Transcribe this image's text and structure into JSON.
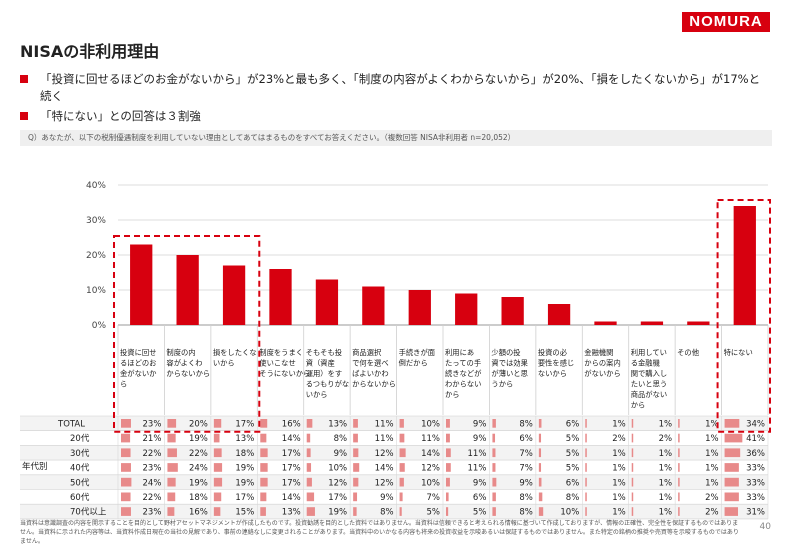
{
  "brand": {
    "logo": "NOMURA",
    "color": "#d7000f"
  },
  "title": "NISAの非利用理由",
  "bullets": [
    "「投資に回せるほどのお金がないから」が23%と最も多く、「制度の内容がよくわからないから」が20%、「損をしたくないから」が17%と続く",
    "「特にない」との回答は３割強"
  ],
  "question": "Q）あなたが、以下の税制優遇制度を利用していない理由としてあてはまるものをすべてお答えください。（複数回答 NISA非利用者 n=20,052）",
  "chart_data": {
    "type": "bar",
    "y_ticks": [
      "40%",
      "30%",
      "20%",
      "10%",
      "0%"
    ],
    "ylim": [
      0,
      40
    ],
    "categories": [
      "投資に回せるほどのお金がないから",
      "制度の内容がよくわからないから",
      "損をしたくないから",
      "制度をうまく使いこなせそうにないから",
      "そもそも投資（資産運用）をするつもりがないから",
      "商品選択で何を選べばよいかわからないから",
      "手続きが面倒だから",
      "利用にあたっての手続きなどがわからないから",
      "少額の投資では効果が薄いと思うから",
      "投資の必要性を感じないから",
      "金融機関からの案内がないから",
      "利用している金融機関で購入したいと思う商品がないから",
      "その他",
      "特にない"
    ],
    "category_lines": [
      [
        "投資に回せ",
        "るほどのお",
        "金がないか",
        "ら"
      ],
      [
        "制度の内",
        "容がよくわ",
        "からないから"
      ],
      [
        "損をしたくな",
        "いから"
      ],
      [
        "制度をうまく",
        "使いこなせ",
        "そうにないから"
      ],
      [
        "そもそも投",
        "資（資産",
        "運用）をす",
        "るつもりがな",
        "いから"
      ],
      [
        "商品選択",
        "で何を選べ",
        "ばよいかわ",
        "からないから"
      ],
      [
        "手続きが面",
        "倒だから"
      ],
      [
        "利用にあ",
        "たっての手",
        "続きなどが",
        "わからない",
        "から"
      ],
      [
        "少額の投",
        "資では効果",
        "が薄いと思",
        "うから"
      ],
      [
        "投資の必",
        "要性を感じ",
        "ないから"
      ],
      [
        "金融機関",
        "からの案内",
        "がないから"
      ],
      [
        "利用してい",
        "る金融機",
        "関で購入し",
        "たいと思う",
        "商品がない",
        "から"
      ],
      [
        "その他"
      ],
      [
        "特にない"
      ]
    ],
    "values": [
      23,
      20,
      17,
      16,
      13,
      11,
      10,
      9,
      8,
      6,
      1,
      1,
      1,
      34
    ],
    "highlight_groups": [
      [
        0,
        2
      ],
      [
        13,
        13
      ]
    ],
    "bar_color": "#d7000f",
    "grid": true
  },
  "table": {
    "age_group_label": "年代別",
    "rows": [
      {
        "label": "TOTAL",
        "values": [
          "23%",
          "20%",
          "17%",
          "16%",
          "13%",
          "11%",
          "10%",
          "9%",
          "8%",
          "6%",
          "1%",
          "1%",
          "1%",
          "34%"
        ],
        "nums": [
          23,
          20,
          17,
          16,
          13,
          11,
          10,
          9,
          8,
          6,
          1,
          1,
          1,
          34
        ]
      },
      {
        "label": "20代",
        "values": [
          "21%",
          "19%",
          "13%",
          "14%",
          "8%",
          "11%",
          "11%",
          "9%",
          "6%",
          "5%",
          "2%",
          "2%",
          "1%",
          "41%"
        ],
        "nums": [
          21,
          19,
          13,
          14,
          8,
          11,
          11,
          9,
          6,
          5,
          2,
          2,
          1,
          41
        ]
      },
      {
        "label": "30代",
        "values": [
          "22%",
          "22%",
          "18%",
          "17%",
          "9%",
          "12%",
          "14%",
          "11%",
          "7%",
          "5%",
          "1%",
          "1%",
          "1%",
          "36%"
        ],
        "nums": [
          22,
          22,
          18,
          17,
          9,
          12,
          14,
          11,
          7,
          5,
          1,
          1,
          1,
          36
        ]
      },
      {
        "label": "40代",
        "values": [
          "23%",
          "24%",
          "19%",
          "17%",
          "10%",
          "14%",
          "12%",
          "11%",
          "7%",
          "5%",
          "1%",
          "1%",
          "1%",
          "33%"
        ],
        "nums": [
          23,
          24,
          19,
          17,
          10,
          14,
          12,
          11,
          7,
          5,
          1,
          1,
          1,
          33
        ]
      },
      {
        "label": "50代",
        "values": [
          "24%",
          "19%",
          "19%",
          "17%",
          "12%",
          "12%",
          "10%",
          "9%",
          "9%",
          "6%",
          "1%",
          "1%",
          "1%",
          "33%"
        ],
        "nums": [
          24,
          19,
          19,
          17,
          12,
          12,
          10,
          9,
          9,
          6,
          1,
          1,
          1,
          33
        ]
      },
      {
        "label": "60代",
        "values": [
          "22%",
          "18%",
          "17%",
          "14%",
          "17%",
          "9%",
          "7%",
          "6%",
          "8%",
          "8%",
          "1%",
          "1%",
          "2%",
          "33%"
        ],
        "nums": [
          22,
          18,
          17,
          14,
          17,
          9,
          7,
          6,
          8,
          8,
          1,
          1,
          2,
          33
        ]
      },
      {
        "label": "70代以上",
        "values": [
          "23%",
          "16%",
          "15%",
          "13%",
          "19%",
          "8%",
          "5%",
          "5%",
          "8%",
          "10%",
          "1%",
          "1%",
          "2%",
          "31%"
        ],
        "nums": [
          23,
          16,
          15,
          13,
          19,
          8,
          5,
          5,
          8,
          10,
          1,
          1,
          2,
          31
        ]
      }
    ]
  },
  "footnote": "当資料は意識調査の内容を開示することを目的として野村アセットマネジメントが作成したものです。投資勧誘を目的とした資料ではありません。当資料は信頼できると考えられる情報に基づいて作成しておりますが、情報の正確性、完全性を保証するものではありません。当資料に示された内容等は、当資料作成日現在の当社の見解であり、事前の連絡なしに変更されることがあります。当資料中のいかなる内容も将来の投資収益を示唆あるいは保証するものではありません。また特定の銘柄の推奨や売買等を示唆するものではありません。",
  "page_number": "40"
}
